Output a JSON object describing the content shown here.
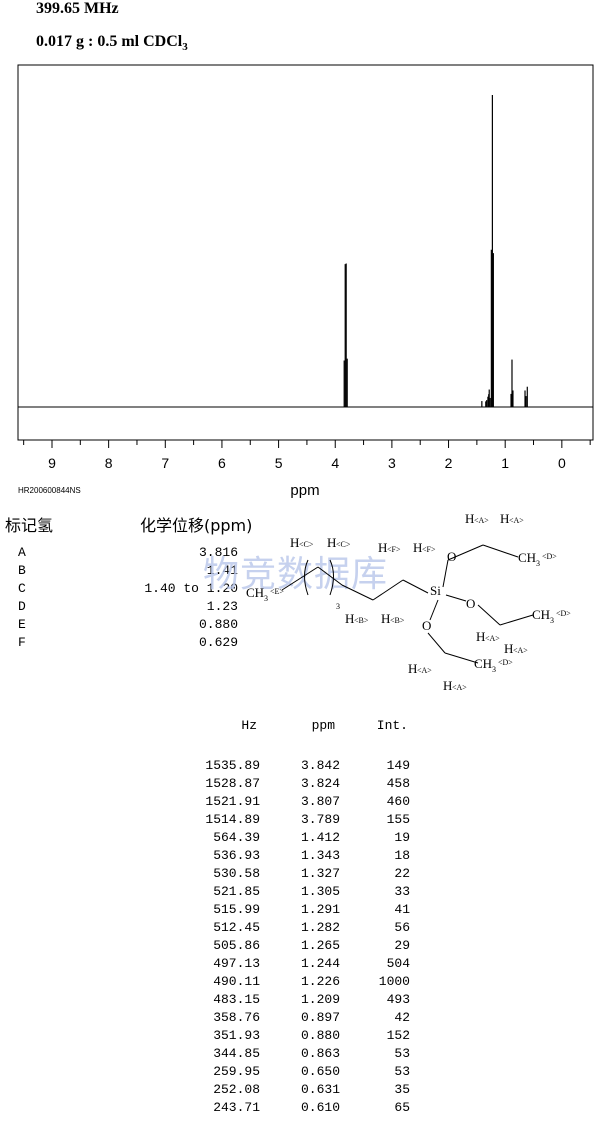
{
  "header": {
    "frequency": "399.65 MHz",
    "sample_main": "0.017 g : 0.5 ml CDCl",
    "sample_sub": "3"
  },
  "chart_data": {
    "type": "line",
    "xlabel": "ppm",
    "xlim": [
      9.6,
      -0.55
    ],
    "xticks": [
      9,
      8,
      7,
      6,
      5,
      4,
      3,
      2,
      1,
      0
    ],
    "reversed_x": true,
    "peaks": [
      {
        "ppm": 3.842,
        "int": 149
      },
      {
        "ppm": 3.824,
        "int": 458
      },
      {
        "ppm": 3.807,
        "int": 460
      },
      {
        "ppm": 3.789,
        "int": 155
      },
      {
        "ppm": 1.412,
        "int": 19
      },
      {
        "ppm": 1.343,
        "int": 18
      },
      {
        "ppm": 1.327,
        "int": 22
      },
      {
        "ppm": 1.305,
        "int": 33
      },
      {
        "ppm": 1.291,
        "int": 41
      },
      {
        "ppm": 1.282,
        "int": 56
      },
      {
        "ppm": 1.265,
        "int": 29
      },
      {
        "ppm": 1.244,
        "int": 504
      },
      {
        "ppm": 1.226,
        "int": 1000
      },
      {
        "ppm": 1.209,
        "int": 493
      },
      {
        "ppm": 0.897,
        "int": 42
      },
      {
        "ppm": 0.88,
        "int": 152
      },
      {
        "ppm": 0.863,
        "int": 53
      },
      {
        "ppm": 0.65,
        "int": 53
      },
      {
        "ppm": 0.631,
        "int": 35
      },
      {
        "ppm": 0.61,
        "int": 65
      }
    ]
  },
  "spectrum_code": "HR200600844NS",
  "assignment": {
    "col1_header": "标记氢",
    "col2_header": "化学位移(ppm)",
    "rows": [
      {
        "label": "A",
        "value": "3.816"
      },
      {
        "label": "B",
        "value": "1.41"
      },
      {
        "label": "C",
        "value": "1.40 to 1.20"
      },
      {
        "label": "D",
        "value": "1.23"
      },
      {
        "label": "E",
        "value": "0.880"
      },
      {
        "label": "F",
        "value": "0.629"
      }
    ]
  },
  "watermark": "物竞数据库",
  "structure": {
    "si": "Si",
    "o": "O",
    "h": "H",
    "ch3": "CH",
    "sub3": "3",
    "repeat": "3",
    "lab_a": "<A>",
    "lab_b": "<B>",
    "lab_c": "<C>",
    "lab_d": "<D>",
    "lab_e": "<E>",
    "lab_f": "<F>"
  },
  "peak_table": {
    "headers": [
      "Hz",
      "ppm",
      "Int."
    ],
    "rows": [
      [
        "1535.89",
        "3.842",
        "149"
      ],
      [
        "1528.87",
        "3.824",
        "458"
      ],
      [
        "1521.91",
        "3.807",
        "460"
      ],
      [
        "1514.89",
        "3.789",
        "155"
      ],
      [
        "564.39",
        "1.412",
        "19"
      ],
      [
        "536.93",
        "1.343",
        "18"
      ],
      [
        "530.58",
        "1.327",
        "22"
      ],
      [
        "521.85",
        "1.305",
        "33"
      ],
      [
        "515.99",
        "1.291",
        "41"
      ],
      [
        "512.45",
        "1.282",
        "56"
      ],
      [
        "505.86",
        "1.265",
        "29"
      ],
      [
        "497.13",
        "1.244",
        "504"
      ],
      [
        "490.11",
        "1.226",
        "1000"
      ],
      [
        "483.15",
        "1.209",
        "493"
      ],
      [
        "358.76",
        "0.897",
        "42"
      ],
      [
        "351.93",
        "0.880",
        "152"
      ],
      [
        "344.85",
        "0.863",
        "53"
      ],
      [
        "259.95",
        "0.650",
        "53"
      ],
      [
        "252.08",
        "0.631",
        "35"
      ],
      [
        "243.71",
        "0.610",
        "65"
      ]
    ]
  }
}
